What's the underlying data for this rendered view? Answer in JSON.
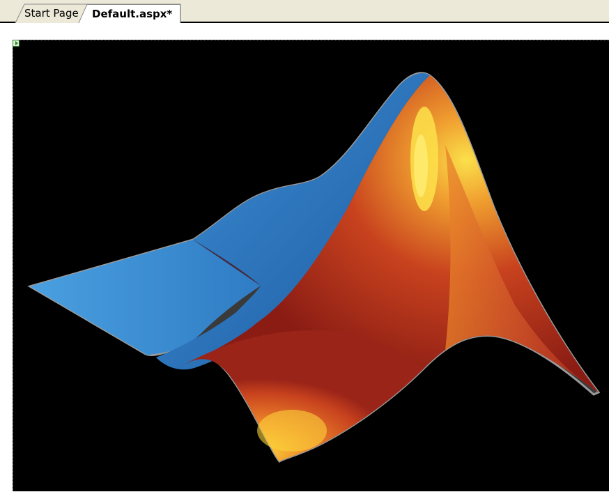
{
  "tabs": [
    {
      "label": "Start Page",
      "active": false
    },
    {
      "label": "Default.aspx*",
      "active": true
    }
  ],
  "design_surface": {
    "background": "#000000",
    "image_icon": "matlab-membrane-logo-icon"
  },
  "colors": {
    "tabstrip": "#ece9d8",
    "active_tab": "#ffffff",
    "surface_blue": "#3b8fd6",
    "surface_red": "#b8281a",
    "surface_orange": "#e8782a",
    "surface_yellow": "#f8d030"
  }
}
